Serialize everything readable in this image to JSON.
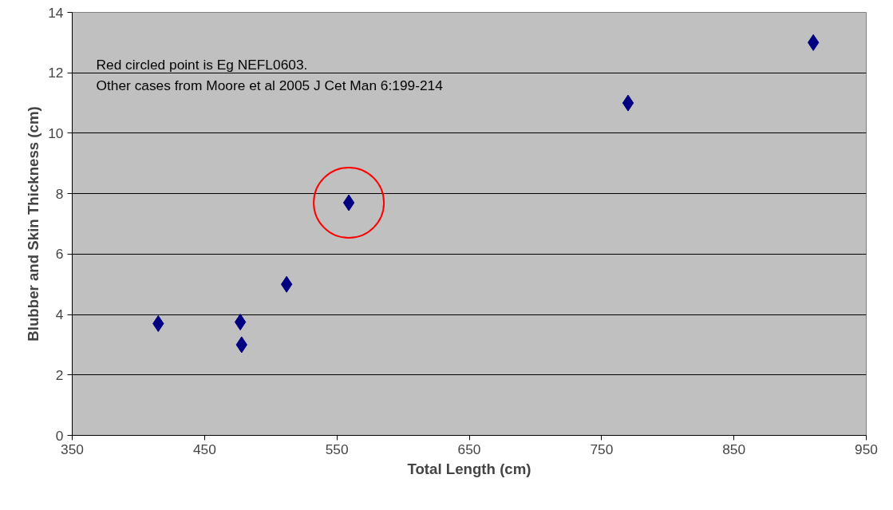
{
  "chart_data": {
    "type": "scatter",
    "xlabel": "Total Length (cm)",
    "ylabel": "Blubber and Skin Thickness (cm)",
    "annotations": [
      "Red circled point is Eg NEFL0603.",
      "Other cases from Moore et al 2005 J Cet Man 6:199-214"
    ],
    "xlim": [
      350,
      950
    ],
    "xticks": [
      350,
      450,
      550,
      650,
      750,
      850,
      950
    ],
    "ylim": [
      0,
      14
    ],
    "yticks": [
      0,
      2,
      4,
      6,
      8,
      10,
      12,
      14
    ],
    "grid": "y",
    "marker": "diamond",
    "series": [
      {
        "color": "#000080",
        "x": [
          415,
          477,
          478,
          512,
          559,
          770,
          910
        ],
        "values": [
          3.7,
          3.75,
          3.0,
          5.0,
          7.7,
          11.0,
          13.0
        ]
      },
      {
        "color": "#ff0000",
        "marker": "circle",
        "x": [
          559
        ],
        "values": [
          7.7
        ]
      }
    ]
  }
}
